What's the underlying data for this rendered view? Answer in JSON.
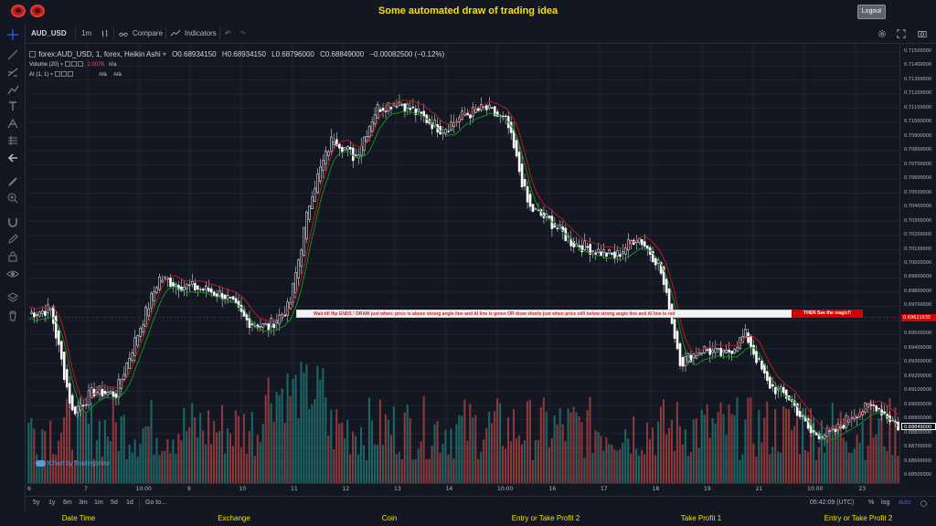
{
  "app": {
    "title": "Some automated draw of trading idea",
    "logout_label": "Logout"
  },
  "toolbar": {
    "symbol": "AUD_USD",
    "interval": "1m",
    "compare_label": "Compare",
    "indicators_label": "Indicators"
  },
  "legend": {
    "main": "forex:AUD_USD, 1, forex, Heikin Ashi",
    "open": "O0.68934150",
    "high": "H0.68934150",
    "low": "L0.68796000",
    "close": "C0.68849000",
    "change": "−0.00082500 (−0.12%)",
    "volume_label": "Volume (20)",
    "volume_value": "2.007K",
    "volume_na": "n/a",
    "ai_label": "AI (1, 1)",
    "ai_na1": "n/a",
    "ai_na2": "n/a"
  },
  "annotation": {
    "text": "Wait till flip ENDS  !    DRAW just when:  price is above strong angle line and AI line is green          OR          draw shorts just when price still below strong angle line and AI line is red",
    "cta": "THEN See the magic!!"
  },
  "price_axis": {
    "ticks": [
      "0.71500000",
      "0.71400000",
      "0.71300000",
      "0.71200000",
      "0.71100000",
      "0.71000000",
      "0.70900000",
      "0.70800000",
      "0.70700000",
      "0.70600000",
      "0.70500000",
      "0.70400000",
      "0.70300000",
      "0.70200000",
      "0.70100000",
      "0.70000000",
      "0.69900000",
      "0.69800000",
      "0.69700000",
      "0.69600000",
      "0.69500000",
      "0.69400000",
      "0.69300000",
      "0.69200000",
      "0.69100000",
      "0.69000000",
      "0.68900000",
      "0.68800000",
      "0.68700000",
      "0.68600000",
      "0.68500000"
    ],
    "current_label": "0.69621635",
    "last_label": "0.68849000"
  },
  "time_axis": {
    "ticks": [
      "6",
      "7",
      "10:00",
      "9",
      "10",
      "11",
      "12",
      "13",
      "14",
      "10:00",
      "16",
      "17",
      "18",
      "19",
      "21",
      "10:00",
      "23"
    ]
  },
  "bottom_toolbar": {
    "ranges": [
      "5y",
      "1y",
      "6m",
      "3m",
      "1m",
      "5d",
      "1d"
    ],
    "goto_label": "Go to...",
    "clock": "05:42:09 (UTC)",
    "percent": "%",
    "log": "log",
    "auto": "auto"
  },
  "watermark": "Chart by TradingView",
  "footer": {
    "labels": [
      "Date Time",
      "Exchange",
      "Coin",
      "Entry or Take Profit 2",
      "Take Profit 1",
      "Entry or Take Profit 2"
    ]
  },
  "colors": {
    "up": "#d1d4dc",
    "down": "#ffffff",
    "ma_green": "#1b8a1b",
    "ma_red": "#b71c1c",
    "vol_up": "#26a69a",
    "vol_down": "#ef5350",
    "accent": "#f5e100"
  },
  "chart_data": {
    "type": "line",
    "symbol": "forex:AUD_USD",
    "style": "Heikin Ashi",
    "ylim": [
      0.6845,
      0.7155
    ],
    "x": [
      0,
      1,
      2,
      3,
      4,
      5,
      6,
      7,
      8,
      9,
      10,
      11,
      12,
      13,
      14,
      15,
      16,
      17,
      18,
      19,
      20,
      21,
      22,
      23,
      24,
      25,
      26,
      27,
      28,
      29,
      30,
      31,
      32,
      33,
      34,
      35,
      36,
      37,
      38,
      39,
      40
    ],
    "series": [
      {
        "values": [
          0.6965,
          0.6968,
          0.6895,
          0.691,
          0.6908,
          0.695,
          0.699,
          0.6985,
          0.6982,
          0.6978,
          0.696,
          0.6955,
          0.697,
          0.705,
          0.709,
          0.7075,
          0.711,
          0.7115,
          0.7105,
          0.7095,
          0.7105,
          0.711,
          0.71,
          0.704,
          0.703,
          0.7015,
          0.701,
          0.7005,
          0.702,
          0.7,
          0.693,
          0.694,
          0.6935,
          0.695,
          0.6915,
          0.6905,
          0.688,
          0.688,
          0.6895,
          0.69,
          0.6885
        ]
      }
    ]
  }
}
